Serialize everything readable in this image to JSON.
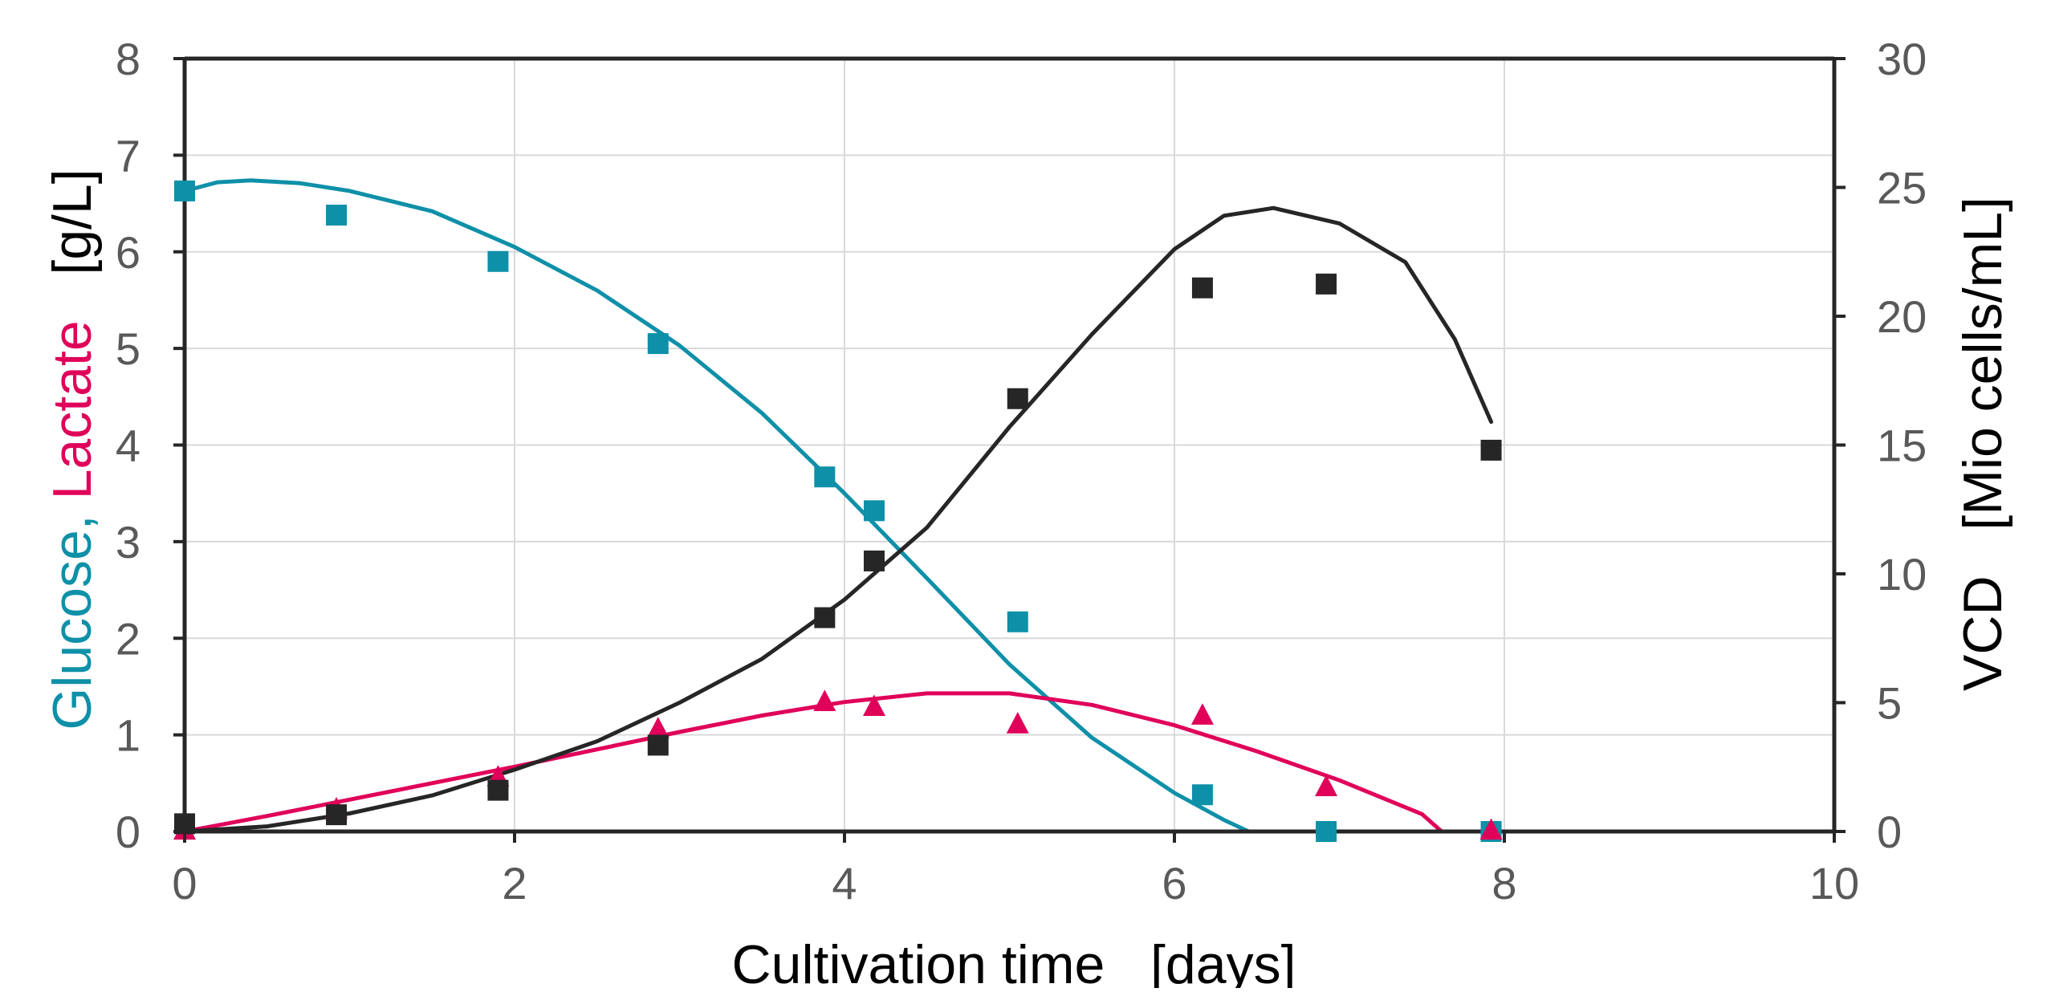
{
  "chart_data": {
    "type": "scatter",
    "x_axis": {
      "label": "Cultivation time   [days]",
      "range": [
        0,
        10
      ],
      "ticks": [
        "0",
        "2",
        "4",
        "6",
        "8",
        "10"
      ]
    },
    "y_left_axis": {
      "label_parts": [
        {
          "text": "Glucose, ",
          "color": "#0E90A8"
        },
        {
          "text": "Lactate",
          "color": "#E0005A"
        },
        {
          "text": "   [g/L]",
          "color": "#000000"
        }
      ],
      "range": [
        0,
        8
      ],
      "ticks": [
        "0",
        "1",
        "2",
        "3",
        "4",
        "5",
        "6",
        "7",
        "8"
      ]
    },
    "y_right_axis": {
      "label": "VCD   [Mio cells/mL]",
      "range": [
        0,
        30
      ],
      "ticks": [
        "0",
        "5",
        "10",
        "15",
        "20",
        "25",
        "30"
      ]
    },
    "grid": true,
    "series": [
      {
        "axis": "left",
        "color": "#0E90A8",
        "marker": "square",
        "points": [
          [
            0,
            6.63
          ],
          [
            0.92,
            6.38
          ],
          [
            1.9,
            5.9
          ],
          [
            2.87,
            5.05
          ],
          [
            3.88,
            3.67
          ],
          [
            4.18,
            3.32
          ],
          [
            5.05,
            2.17
          ],
          [
            6.17,
            0.38
          ],
          [
            6.92,
            0.0
          ],
          [
            7.92,
            0.0
          ]
        ],
        "fit": [
          [
            0,
            6.63
          ],
          [
            0.2,
            6.72
          ],
          [
            0.4,
            6.74
          ],
          [
            0.7,
            6.71
          ],
          [
            1.0,
            6.63
          ],
          [
            1.5,
            6.42
          ],
          [
            2.0,
            6.05
          ],
          [
            2.5,
            5.6
          ],
          [
            3.0,
            5.03
          ],
          [
            3.5,
            4.33
          ],
          [
            4.0,
            3.5
          ],
          [
            4.5,
            2.62
          ],
          [
            5.0,
            1.73
          ],
          [
            5.5,
            0.97
          ],
          [
            6.0,
            0.4
          ],
          [
            6.3,
            0.12
          ],
          [
            6.45,
            0.0
          ],
          [
            7.92,
            0.0
          ]
        ]
      },
      {
        "axis": "left",
        "color": "#E0005A",
        "marker": "triangle",
        "points": [
          [
            0,
            0.0
          ],
          [
            0.92,
            0.22
          ],
          [
            1.9,
            0.55
          ],
          [
            2.87,
            1.05
          ],
          [
            3.88,
            1.33
          ],
          [
            4.18,
            1.28
          ],
          [
            5.05,
            1.1
          ],
          [
            6.17,
            1.19
          ],
          [
            6.92,
            0.45
          ],
          [
            7.92,
            0.0
          ]
        ],
        "fit": [
          [
            0,
            0.0
          ],
          [
            0.5,
            0.16
          ],
          [
            1.0,
            0.33
          ],
          [
            1.5,
            0.5
          ],
          [
            2.0,
            0.67
          ],
          [
            2.5,
            0.85
          ],
          [
            3.0,
            1.03
          ],
          [
            3.5,
            1.2
          ],
          [
            4.0,
            1.34
          ],
          [
            4.5,
            1.43
          ],
          [
            5.0,
            1.43
          ],
          [
            5.5,
            1.31
          ],
          [
            6.0,
            1.1
          ],
          [
            6.5,
            0.83
          ],
          [
            7.0,
            0.53
          ],
          [
            7.5,
            0.18
          ],
          [
            7.62,
            0.0
          ],
          [
            7.92,
            0.0
          ]
        ]
      },
      {
        "axis": "right",
        "color": "#262626",
        "marker": "square",
        "points": [
          [
            0,
            0.3
          ],
          [
            0.92,
            0.65
          ],
          [
            1.9,
            1.6
          ],
          [
            2.87,
            3.35
          ],
          [
            3.88,
            8.3
          ],
          [
            4.18,
            10.5
          ],
          [
            5.05,
            16.8
          ],
          [
            6.17,
            21.1
          ],
          [
            6.92,
            21.25
          ],
          [
            7.92,
            14.8
          ]
        ],
        "fit": [
          [
            0,
            0.0
          ],
          [
            0.5,
            0.2
          ],
          [
            1.0,
            0.7
          ],
          [
            1.5,
            1.4
          ],
          [
            2.0,
            2.4
          ],
          [
            2.5,
            3.5
          ],
          [
            3.0,
            5.0
          ],
          [
            3.5,
            6.7
          ],
          [
            4.0,
            9.0
          ],
          [
            4.5,
            11.8
          ],
          [
            5.0,
            15.7
          ],
          [
            5.5,
            19.3
          ],
          [
            6.0,
            22.6
          ],
          [
            6.3,
            23.9
          ],
          [
            6.6,
            24.2
          ],
          [
            7.0,
            23.6
          ],
          [
            7.4,
            22.1
          ],
          [
            7.7,
            19.1
          ],
          [
            7.92,
            15.9
          ]
        ]
      }
    ]
  }
}
